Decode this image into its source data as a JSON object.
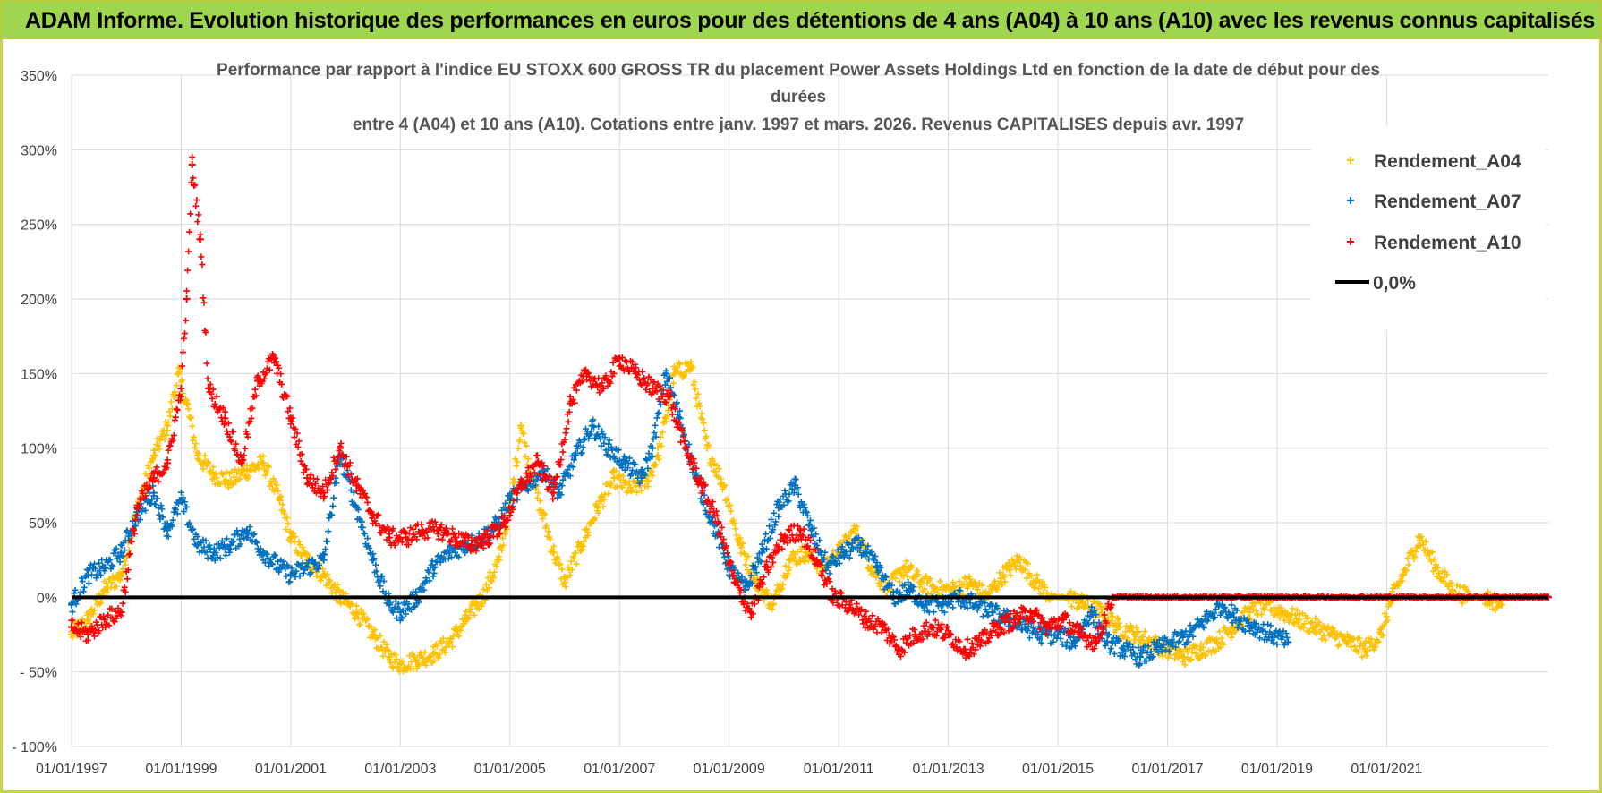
{
  "banner": {
    "title": "ADAM Informe. Evolution historique des performances en euros pour des détentions de 4 ans (A04) à 10 ans (A10) avec les revenus connus capitalisés"
  },
  "chart_data": {
    "type": "scatter",
    "title_lines": [
      "Performance par rapport à l'indice EU STOXX 600 GROSS TR  du placement Power Assets Holdings Ltd en fonction de la date de début pour des",
      "durées",
      "entre 4 (A04) et 10 ans (A10). Cotations entre janv. 1997 et mars. 2026. Revenus CAPITALISES depuis avr. 1997"
    ],
    "xlabel": "",
    "ylabel": "",
    "xlim": [
      1997.0,
      2023.95
    ],
    "ylim": [
      -100,
      350
    ],
    "y_ticks": [
      -100,
      -50,
      0,
      50,
      100,
      150,
      200,
      250,
      300,
      350
    ],
    "y_tick_labels": [
      "- 100%",
      "- 50%",
      "0%",
      "50%",
      "100%",
      "150%",
      "200%",
      "250%",
      "300%",
      "350%"
    ],
    "x_ticks": [
      1997,
      1999,
      2001,
      2003,
      2005,
      2007,
      2009,
      2011,
      2013,
      2015,
      2017,
      2019,
      2021
    ],
    "x_tick_labels": [
      "01/01/1997",
      "01/01/1999",
      "01/01/2001",
      "01/01/2003",
      "01/01/2005",
      "01/01/2007",
      "01/01/2009",
      "01/01/2011",
      "01/01/2013",
      "01/01/2015",
      "01/01/2017",
      "01/01/2019",
      "01/01/2021"
    ],
    "grid": true,
    "legend_position": "top-right",
    "marker": "+",
    "series": [
      {
        "name": "Rendement_A04",
        "color": "#FFC000",
        "x": [
          1997.0,
          1997.3,
          1997.6,
          1997.9,
          1998.2,
          1998.5,
          1998.75,
          1998.95,
          1999.1,
          1999.3,
          1999.6,
          1999.9,
          2000.2,
          2000.5,
          2000.8,
          2001.0,
          2001.3,
          2001.6,
          2001.9,
          2002.2,
          2002.5,
          2002.8,
          2003.0,
          2003.3,
          2003.6,
          2003.9,
          2004.2,
          2004.5,
          2004.8,
          2005.0,
          2005.2,
          2005.4,
          2005.6,
          2005.8,
          2006.0,
          2006.3,
          2006.6,
          2006.9,
          2007.2,
          2007.5,
          2007.7,
          2007.85,
          2008.0,
          2008.3,
          2008.6,
          2008.9,
          2009.2,
          2009.5,
          2009.8,
          2010.1,
          2010.4,
          2010.7,
          2011.0,
          2011.3,
          2011.6,
          2011.9,
          2012.2,
          2012.5,
          2012.8,
          2013.1,
          2013.4,
          2013.7,
          2014.0,
          2014.3,
          2014.6,
          2014.9,
          2015.2,
          2015.5,
          2015.8,
          2016.1,
          2016.4,
          2016.7,
          2017.0,
          2017.3,
          2017.6,
          2017.9,
          2018.2,
          2018.5,
          2018.8,
          2019.1,
          2019.4,
          2019.7,
          2020.0,
          2020.3,
          2020.6,
          2020.9,
          2021.1,
          2021.3,
          2021.6,
          2021.9,
          2022.2,
          2022.5,
          2022.8,
          2023.1
        ],
        "y": [
          -25,
          -15,
          5,
          15,
          60,
          95,
          115,
          150,
          130,
          95,
          82,
          78,
          85,
          90,
          65,
          40,
          25,
          15,
          0,
          -10,
          -25,
          -40,
          -45,
          -42,
          -38,
          -30,
          -15,
          0,
          25,
          60,
          115,
          80,
          55,
          30,
          10,
          35,
          60,
          80,
          72,
          78,
          95,
          120,
          150,
          155,
          100,
          75,
          35,
          10,
          -5,
          25,
          30,
          20,
          30,
          45,
          20,
          5,
          20,
          10,
          5,
          5,
          10,
          0,
          15,
          25,
          10,
          0,
          0,
          -5,
          -10,
          -20,
          -25,
          -30,
          -35,
          -40,
          -35,
          -30,
          -20,
          -10,
          -5,
          -10,
          -15,
          -20,
          -25,
          -30,
          -35,
          -25,
          0,
          15,
          40,
          20,
          5,
          0,
          0,
          -5
        ]
      },
      {
        "name": "Rendement_A07",
        "color": "#0070C0",
        "x": [
          1997.0,
          1997.3,
          1997.6,
          1997.9,
          1998.2,
          1998.5,
          1998.75,
          1999.0,
          1999.3,
          1999.6,
          1999.9,
          2000.2,
          2000.5,
          2000.8,
          2001.0,
          2001.3,
          2001.6,
          2001.9,
          2002.2,
          2002.5,
          2002.8,
          2003.0,
          2003.3,
          2003.6,
          2003.9,
          2004.2,
          2004.5,
          2004.8,
          2005.0,
          2005.3,
          2005.6,
          2005.9,
          2006.2,
          2006.5,
          2006.8,
          2007.1,
          2007.4,
          2007.6,
          2007.85,
          2008.1,
          2008.4,
          2008.7,
          2009.0,
          2009.3,
          2009.6,
          2009.9,
          2010.2,
          2010.5,
          2010.8,
          2011.1,
          2011.4,
          2011.7,
          2012.0,
          2012.3,
          2012.6,
          2012.9,
          2013.2,
          2013.5,
          2013.8,
          2014.1,
          2014.4,
          2014.7,
          2015.0,
          2015.3,
          2015.6,
          2015.9,
          2016.2,
          2016.5,
          2016.8,
          2017.1,
          2017.4,
          2017.7,
          2018.0,
          2018.3,
          2018.6,
          2018.9,
          2019.2
        ],
        "y": [
          -5,
          15,
          20,
          30,
          55,
          70,
          45,
          65,
          35,
          30,
          35,
          45,
          30,
          20,
          15,
          20,
          25,
          95,
          60,
          25,
          -5,
          -10,
          0,
          20,
          30,
          35,
          40,
          50,
          65,
          75,
          85,
          70,
          95,
          115,
          100,
          90,
          80,
          100,
          150,
          120,
          80,
          50,
          20,
          5,
          30,
          60,
          75,
          45,
          20,
          30,
          35,
          20,
          0,
          5,
          -5,
          -5,
          0,
          -5,
          -10,
          -15,
          -20,
          -25,
          -25,
          -30,
          -10,
          -30,
          -35,
          -40,
          -35,
          -30,
          -25,
          -15,
          -5,
          -15,
          -20,
          -25,
          -30
        ]
      },
      {
        "name": "Rendement_A10",
        "color": "#FF0000",
        "x": [
          1997.0,
          1997.3,
          1997.6,
          1997.9,
          1998.2,
          1998.5,
          1998.75,
          1999.0,
          1999.1,
          1999.2,
          1999.35,
          1999.5,
          1999.8,
          2000.1,
          2000.4,
          2000.7,
          2001.0,
          2001.3,
          2001.6,
          2001.9,
          2002.2,
          2002.5,
          2002.8,
          2003.1,
          2003.4,
          2003.7,
          2004.0,
          2004.3,
          2004.6,
          2004.9,
          2005.2,
          2005.5,
          2005.8,
          2006.1,
          2006.4,
          2006.7,
          2007.0,
          2007.3,
          2007.6,
          2007.9,
          2008.2,
          2008.5,
          2008.8,
          2009.1,
          2009.4,
          2009.7,
          2010.0,
          2010.3,
          2010.6,
          2010.9,
          2011.2,
          2011.5,
          2011.8,
          2012.1,
          2012.4,
          2012.7,
          2013.0,
          2013.3,
          2013.6,
          2013.9,
          2014.2,
          2014.5,
          2014.8,
          2015.1,
          2015.4,
          2015.7,
          2016.0,
          2016.3,
          2016.6,
          2016.9,
          2017.5,
          2018.0,
          2018.5,
          2019.0,
          2019.5,
          2020.0,
          2020.5,
          2021.0,
          2021.5,
          2022.0,
          2022.5,
          2023.0,
          2023.5,
          2023.95
        ],
        "y": [
          -20,
          -25,
          -15,
          -10,
          60,
          80,
          90,
          140,
          200,
          290,
          240,
          140,
          120,
          90,
          145,
          160,
          120,
          80,
          70,
          100,
          75,
          55,
          40,
          40,
          45,
          45,
          40,
          35,
          40,
          50,
          75,
          90,
          70,
          130,
          150,
          140,
          160,
          150,
          140,
          135,
          100,
          75,
          50,
          10,
          -10,
          20,
          40,
          45,
          25,
          0,
          -5,
          -15,
          -20,
          -35,
          -25,
          -20,
          -25,
          -35,
          -30,
          -20,
          -15,
          -10,
          -20,
          -15,
          -25,
          -30,
          0,
          0,
          0,
          0,
          0,
          0,
          0,
          0,
          0,
          0,
          0,
          0,
          0,
          0,
          0,
          0,
          0,
          0
        ]
      },
      {
        "name": "0,0%",
        "color": "#000000",
        "x": [
          1997.0,
          2023.95
        ],
        "y": [
          0,
          0
        ]
      }
    ]
  }
}
